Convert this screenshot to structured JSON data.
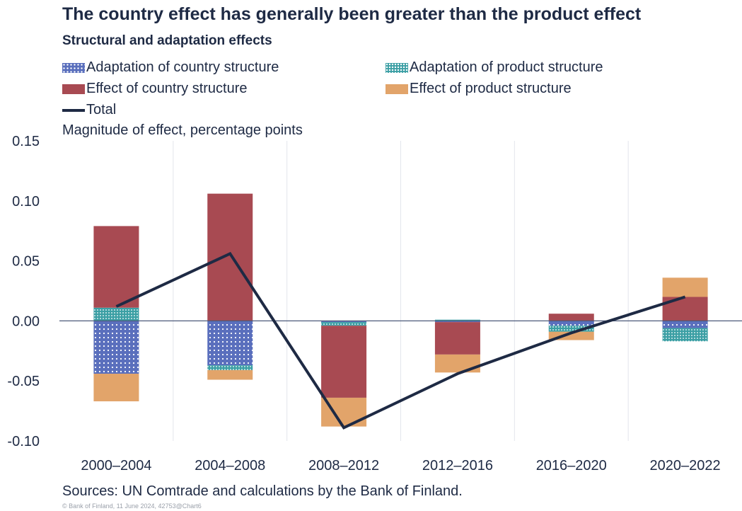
{
  "header": {
    "title": "The country effect has generally been greater than the product effect",
    "subtitle": "Structural and adaptation effects"
  },
  "legend": {
    "adaptation_country": "Adaptation of country structure",
    "adaptation_product": "Adaptation of product structure",
    "effect_country": "Effect of country structure",
    "effect_product": "Effect of product structure",
    "total": "Total"
  },
  "footer": {
    "source": "Sources: UN Comtrade and calculations by the Bank of Finland.",
    "copyright": "© Bank of Finland, 11 June 2024, 42753@Chart6"
  },
  "colors": {
    "adaptation_country": "#5a6fbd",
    "adaptation_product": "#3b9fa4",
    "effect_country": "#a84a52",
    "effect_product": "#e2a46a",
    "total": "#1e2a44"
  },
  "chart_data": {
    "type": "bar",
    "stacked": true,
    "ylabel": "Magnitude of effect, percentage points",
    "ylim": [
      -0.1,
      0.15
    ],
    "yticks": [
      "0.15",
      "0.10",
      "0.05",
      "0.00",
      "-0.05",
      "-0.10"
    ],
    "categories": [
      "2000–2004",
      "2004–2008",
      "2008–2012",
      "2012–2016",
      "2016–2020",
      "2020–2022"
    ],
    "series": [
      {
        "key": "adaptation_country",
        "name": "Adaptation of country structure",
        "values": [
          -0.044,
          -0.037,
          -0.001,
          -0.001,
          -0.004,
          -0.006
        ]
      },
      {
        "key": "adaptation_product",
        "name": "Adaptation of product structure",
        "values": [
          0.011,
          -0.004,
          -0.003,
          0.001,
          -0.005,
          -0.011
        ]
      },
      {
        "key": "effect_country",
        "name": "Effect of country structure",
        "values": [
          0.068,
          0.106,
          -0.06,
          -0.027,
          0.006,
          0.02
        ]
      },
      {
        "key": "effect_product",
        "name": "Effect of product structure",
        "values": [
          -0.023,
          -0.008,
          -0.024,
          -0.015,
          -0.007,
          0.016
        ]
      }
    ],
    "total": {
      "name": "Total",
      "values": [
        0.012,
        0.056,
        -0.089,
        -0.044,
        -0.01,
        0.02
      ]
    },
    "grid": true,
    "legend_position": "top"
  }
}
